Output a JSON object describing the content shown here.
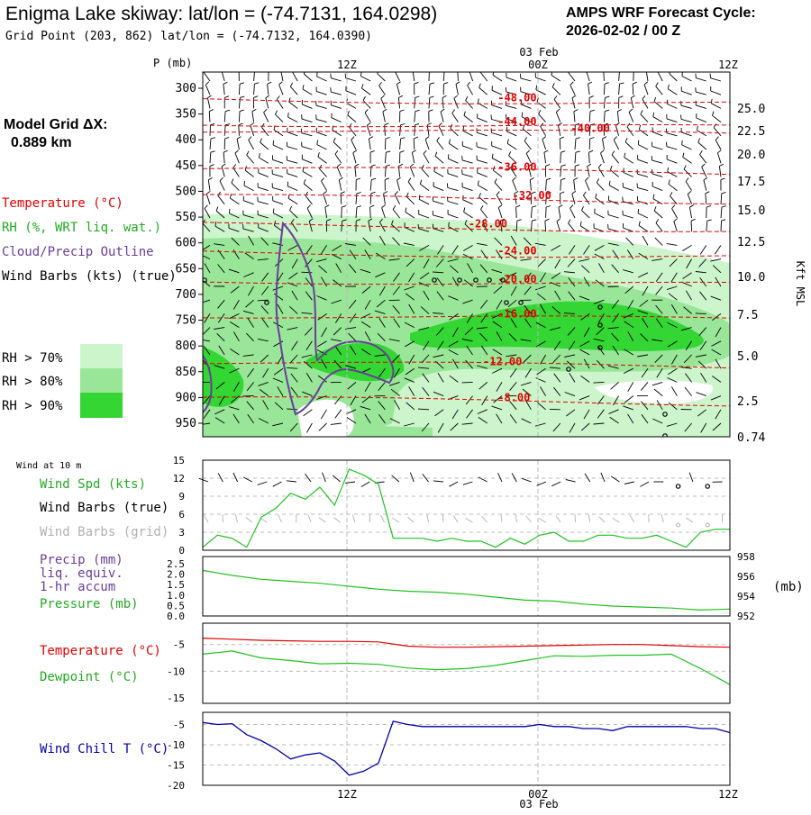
{
  "header": {
    "title": "Enigma Lake skiway:  lat/lon = (-74.7131, 164.0298)",
    "subtitle": "Grid Point (203, 862) lat/lon = (-74.7132, 164.0390)",
    "forecast_label": "AMPS WRF Forecast Cycle:",
    "forecast_cycle": "2026-02-02 / 00  Z"
  },
  "model_grid": {
    "label": "Model Grid ΔX:",
    "value": "0.889 km"
  },
  "legend": {
    "temperature": "Temperature (°C)",
    "rh": "RH (%, WRT liq. wat.)",
    "cloud": "Cloud/Precip Outline",
    "wind": "Wind Barbs (kts) (true)",
    "rh70": "RH > 70%",
    "rh80": "RH > 80%",
    "rh90": "RH > 90%"
  },
  "colors": {
    "temperature": "#e00000",
    "rh70": "#ccf5cc",
    "rh80": "#99e699",
    "rh90": "#33d633",
    "cloud": "#6a3d9a",
    "green_line": "#22c022",
    "red_line": "#e00000",
    "blue_line": "#0000aa",
    "grid": "#999999",
    "legend_green": "#22aa22",
    "legend_purple": "#6a3d9a",
    "legend_blue": "#0000aa",
    "legend_gray": "#b0b0b0"
  },
  "time_axis": {
    "ticks": [
      "12Z",
      "00Z",
      "12Z"
    ],
    "date_label": "03 Feb"
  },
  "chart_data": [
    {
      "type": "heatmap",
      "name": "upper-air cross section",
      "yaxis_label": "P (mb)",
      "pressure_ticks": [
        "300",
        "350",
        "400",
        "450",
        "500",
        "550",
        "600",
        "650",
        "700",
        "750",
        "800",
        "850",
        "900",
        "950"
      ],
      "right_axis_label": "Kft MSL",
      "height_ticks": [
        "25.0",
        "22.5",
        "20.0",
        "17.5",
        "15.0",
        "12.5",
        "10.0",
        "7.5",
        "5.0",
        "2.5",
        "0.74"
      ],
      "temperature_contours": [
        {
          "label": "-48.00",
          "value": -48,
          "label_time_h": 21,
          "label_p": 325
        },
        {
          "label": "-44.00",
          "value": -44,
          "label_time_h": 21,
          "label_p": 372
        },
        {
          "label": "-40.00",
          "value": -40,
          "label_time_h": 26,
          "label_p": 385
        },
        {
          "label": "-36.00",
          "value": -36,
          "label_time_h": 21,
          "label_p": 460
        },
        {
          "label": "-32.00",
          "value": -32,
          "label_time_h": 22,
          "label_p": 515
        },
        {
          "label": "-28.00",
          "value": -28,
          "label_time_h": 19,
          "label_p": 570
        },
        {
          "label": "-24.00",
          "value": -24,
          "label_time_h": 21,
          "label_p": 622
        },
        {
          "label": "-20.00",
          "value": -20,
          "label_time_h": 21,
          "label_p": 677
        },
        {
          "label": "-16.00",
          "value": -16,
          "label_time_h": 21,
          "label_p": 745
        },
        {
          "label": "-12.00",
          "value": -12,
          "label_time_h": 20,
          "label_p": 837
        },
        {
          "label": "-8.00",
          "value": -8,
          "label_time_h": 21,
          "label_p": 907
        }
      ]
    },
    {
      "type": "line",
      "name": "wind at 10 m",
      "panel_label": "Wind at 10 m",
      "series_labels": [
        "Wind Spd (kts)",
        "Wind Barbs (true)",
        "Wind Barbs (grid)"
      ],
      "yticks": [
        "15",
        "12",
        "9",
        "6",
        "3",
        "0"
      ],
      "ylim": [
        0,
        15
      ],
      "x_hours": [
        0,
        1,
        2,
        3,
        4,
        5,
        6,
        7,
        8,
        9,
        10,
        11,
        12,
        13,
        14,
        15,
        16,
        17,
        18,
        19,
        20,
        21,
        22,
        23,
        24,
        25,
        26,
        27,
        28,
        29,
        30,
        31,
        32,
        33,
        34,
        35,
        36
      ],
      "wind_speed_kts": [
        0.5,
        2.5,
        2.0,
        0.5,
        5.5,
        7.0,
        9.5,
        8.5,
        10.5,
        7.5,
        13.5,
        12.5,
        11.0,
        2.0,
        2.0,
        2.0,
        1.5,
        2.0,
        1.5,
        1.5,
        0.5,
        2.0,
        1.0,
        2.5,
        3.0,
        1.5,
        1.5,
        2.5,
        2.5,
        2.0,
        2.0,
        2.5,
        1.5,
        0.5,
        3.0,
        3.5,
        3.5
      ]
    },
    {
      "type": "line",
      "name": "precip and pressure",
      "series_labels": [
        "Precip (mm)",
        "liq. equiv.",
        "1-hr accum",
        "Pressure (mb)"
      ],
      "yticks_left": [
        "2.5",
        "2.0",
        "1.5",
        "1.0",
        "0.5",
        "0.0"
      ],
      "yticks_right": [
        "958",
        "956",
        "954",
        "952"
      ],
      "right_unit": "(mb)",
      "ylim_right": [
        952,
        958
      ],
      "x_hours": [
        0,
        2,
        4,
        6,
        8,
        10,
        12,
        14,
        16,
        18,
        20,
        22,
        24,
        26,
        28,
        30,
        32,
        34,
        36
      ],
      "pressure_mb": [
        956.6,
        956.1,
        955.7,
        955.5,
        955.3,
        955.0,
        954.7,
        954.5,
        954.4,
        954.2,
        953.9,
        953.6,
        953.5,
        953.2,
        953.0,
        952.9,
        952.8,
        952.6,
        952.7
      ]
    },
    {
      "type": "line",
      "name": "temperature and dewpoint",
      "series_labels": [
        "Temperature (°C)",
        "Dewpoint (°C)"
      ],
      "yticks": [
        "-5",
        "-10",
        "-15"
      ],
      "ylim": [
        -16,
        -1
      ],
      "x_hours": [
        0,
        2,
        4,
        6,
        8,
        10,
        12,
        14,
        16,
        18,
        20,
        22,
        24,
        26,
        28,
        30,
        32,
        34,
        36
      ],
      "temperature_c": [
        -3.8,
        -4.0,
        -4.2,
        -4.3,
        -4.4,
        -4.4,
        -4.5,
        -5.3,
        -5.5,
        -5.5,
        -5.4,
        -5.3,
        -5.2,
        -5.1,
        -5.0,
        -5.0,
        -5.2,
        -5.4,
        -5.5
      ],
      "dewpoint_c": [
        -6.8,
        -6.2,
        -7.5,
        -8.0,
        -8.6,
        -8.5,
        -8.7,
        -9.4,
        -9.7,
        -9.5,
        -8.9,
        -8.0,
        -7.1,
        -7.2,
        -7.0,
        -7.0,
        -6.8,
        -9.5,
        -12.5
      ]
    },
    {
      "type": "line",
      "name": "wind chill",
      "series_labels": [
        "Wind Chill T (°C)"
      ],
      "yticks": [
        "-5",
        "-10",
        "-15",
        "-20"
      ],
      "ylim": [
        -20,
        -2
      ],
      "x_hours": [
        0,
        1,
        2,
        3,
        4,
        5,
        6,
        7,
        8,
        9,
        10,
        11,
        12,
        13,
        14,
        15,
        16,
        17,
        18,
        19,
        20,
        21,
        22,
        23,
        24,
        25,
        26,
        27,
        28,
        29,
        30,
        31,
        32,
        33,
        34,
        35,
        36
      ],
      "wind_chill_c": [
        -4.5,
        -5.0,
        -4.8,
        -7.5,
        -9.0,
        -11.0,
        -13.5,
        -12.5,
        -12.0,
        -14.0,
        -17.5,
        -16.5,
        -14.5,
        -4.2,
        -5.0,
        -5.5,
        -5.5,
        -5.5,
        -5.5,
        -5.5,
        -5.5,
        -5.5,
        -5.5,
        -5.0,
        -5.5,
        -5.5,
        -6.0,
        -6.0,
        -6.5,
        -5.5,
        -5.5,
        -5.5,
        -5.5,
        -5.5,
        -6.0,
        -6.0,
        -7.0
      ]
    }
  ]
}
